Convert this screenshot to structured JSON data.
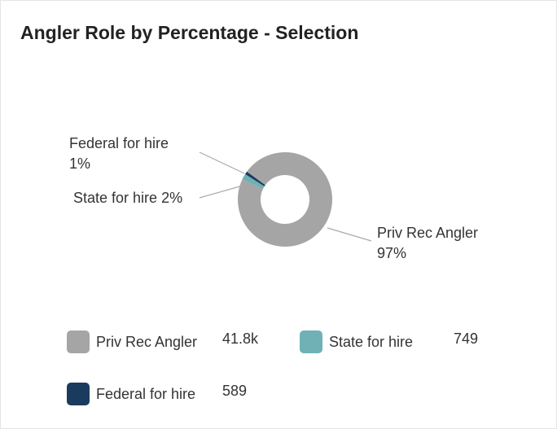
{
  "chart_data": {
    "type": "pie",
    "title": "Angler Role by Percentage - Selection",
    "categories": [
      "Priv Rec Angler",
      "State for hire",
      "Federal for hire"
    ],
    "values": [
      97,
      2,
      1
    ],
    "value_labels": [
      "97%",
      "2%",
      "1%"
    ],
    "colors": [
      "#a5a5a5",
      "#6fb1b5",
      "#1b3b5e"
    ],
    "counts": [
      41800,
      749,
      589
    ],
    "count_labels": [
      "41.8k",
      "749",
      "589"
    ],
    "donut": true
  }
}
